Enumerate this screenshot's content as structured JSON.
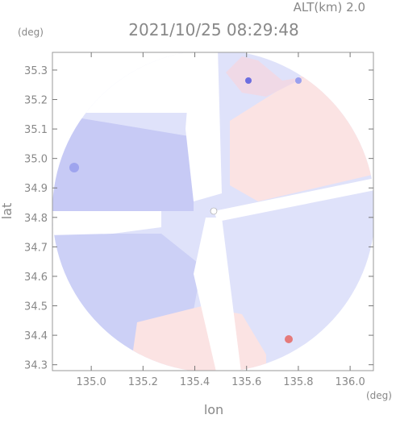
{
  "chart_data": {
    "type": "map",
    "title": "2021/10/25 08:29:48",
    "subtitle": "ALT(km) 2.0",
    "x_label": "lon",
    "y_label": "lat",
    "x_unit": "(deg)",
    "y_unit": "(deg)",
    "xlim": [
      134.85,
      136.09
    ],
    "ylim": [
      34.28,
      35.36
    ],
    "xticks": [
      {
        "value": 135.0,
        "label": "135.0"
      },
      135.2,
      135.4,
      135.6,
      135.8,
      {
        "value": 136.0,
        "label": "136.0"
      }
    ],
    "yticks": [
      34.3,
      34.4,
      34.5,
      34.6,
      34.7,
      34.8,
      34.9,
      {
        "value": 35.0,
        "label": "35.0"
      },
      35.1,
      35.2,
      35.3
    ]
  }
}
